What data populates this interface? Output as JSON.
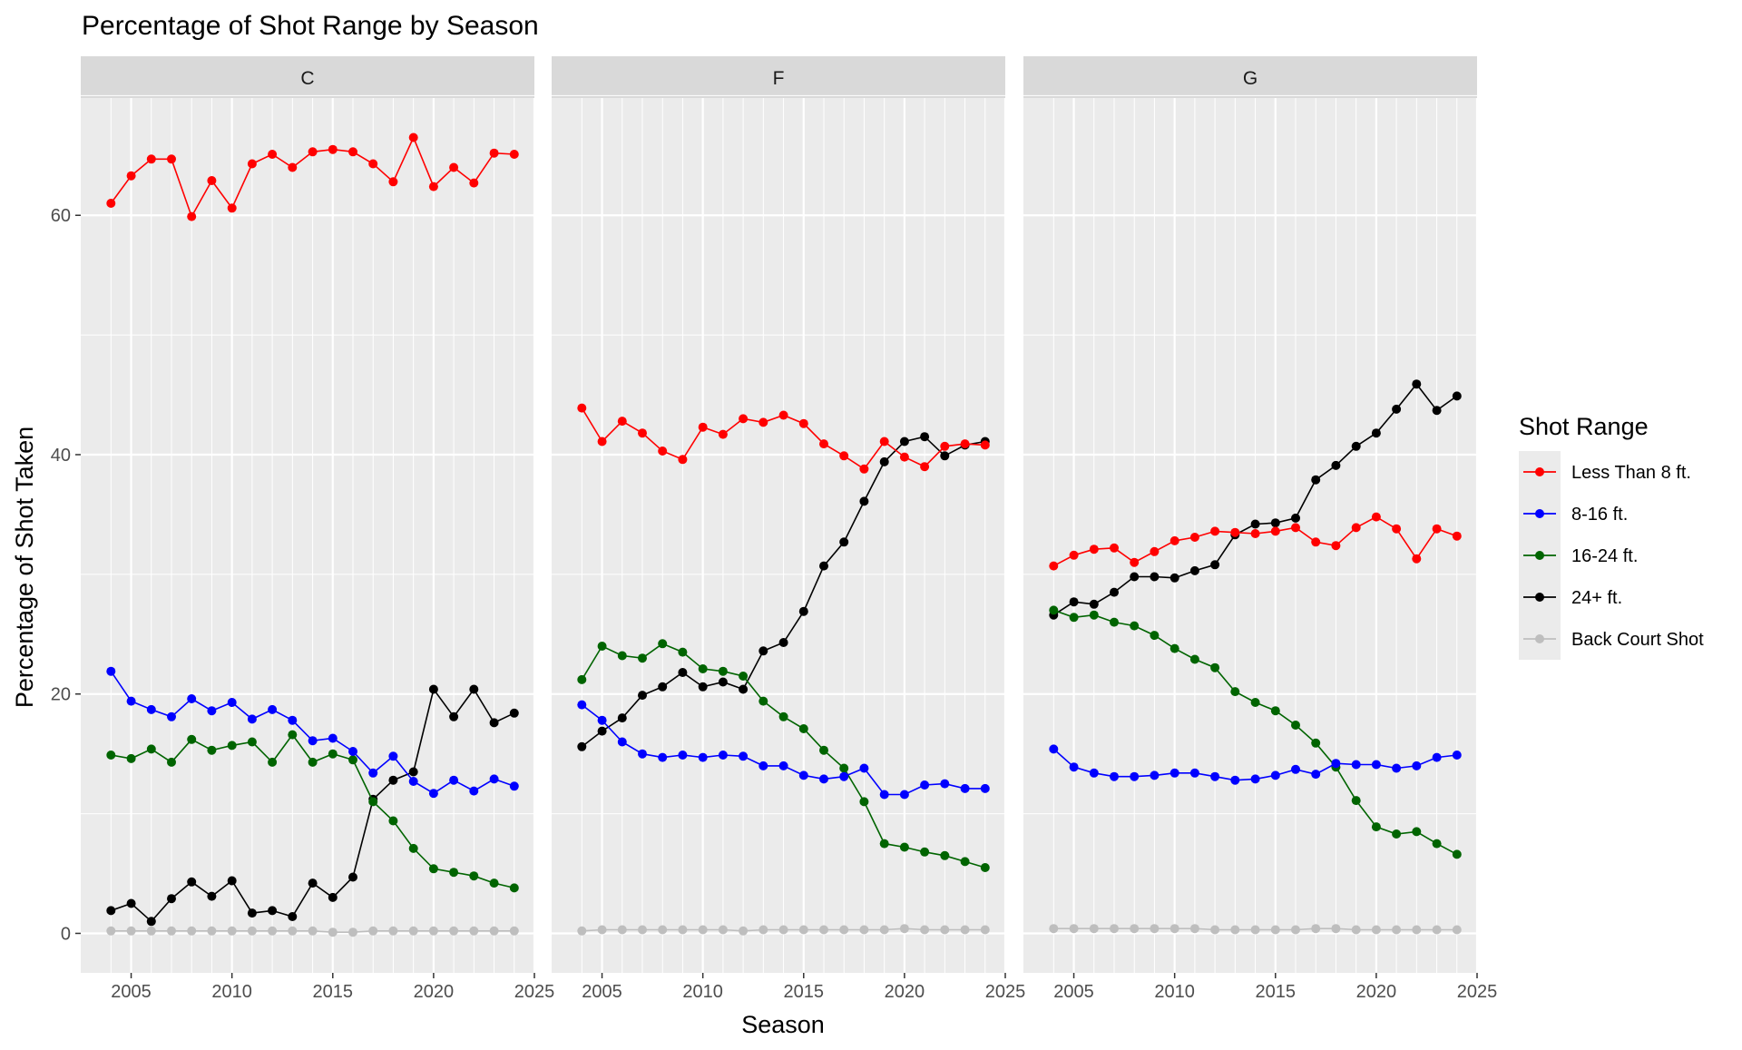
{
  "chart_data": {
    "type": "line",
    "title": "Percentage of Shot Range by Season",
    "xlabel": "Season",
    "ylabel": "Percentage of Shot Taken",
    "xlim": [
      2002.5,
      2025
    ],
    "ylim": [
      -3.3,
      69.8
    ],
    "x_ticks": [
      2005,
      2010,
      2015,
      2020,
      2025
    ],
    "y_ticks": [
      0,
      20,
      40,
      60
    ],
    "grid": true,
    "legend": {
      "title": "Shot Range",
      "position": "right",
      "entries": [
        {
          "name": "Less Than 8 ft.",
          "color": "#ff0000"
        },
        {
          "name": "8-16 ft.",
          "color": "#0000ff"
        },
        {
          "name": "16-24 ft.",
          "color": "#006400"
        },
        {
          "name": "24+ ft.",
          "color": "#000000"
        },
        {
          "name": "Back Court Shot",
          "color": "#bebebe"
        }
      ]
    },
    "x": [
      2004,
      2005,
      2006,
      2007,
      2008,
      2009,
      2010,
      2011,
      2012,
      2013,
      2014,
      2015,
      2016,
      2017,
      2018,
      2019,
      2020,
      2021,
      2022,
      2023,
      2024
    ],
    "panels": [
      {
        "label": "C",
        "series": [
          {
            "name": "Less Than 8 ft.",
            "values": [
              61.0,
              63.3,
              64.7,
              64.7,
              59.9,
              62.9,
              60.6,
              64.3,
              65.1,
              64.0,
              65.3,
              65.5,
              65.3,
              64.3,
              62.8,
              66.5,
              62.4,
              64.0,
              62.7,
              65.2,
              65.1
            ]
          },
          {
            "name": "8-16 ft.",
            "values": [
              21.9,
              19.4,
              18.7,
              18.1,
              19.6,
              18.6,
              19.3,
              17.9,
              18.7,
              17.8,
              16.1,
              16.3,
              15.2,
              13.4,
              14.8,
              12.7,
              11.7,
              12.8,
              11.9,
              12.9,
              12.3
            ]
          },
          {
            "name": "16-24 ft.",
            "values": [
              14.9,
              14.6,
              15.4,
              14.3,
              16.2,
              15.3,
              15.7,
              16.0,
              14.3,
              16.6,
              14.3,
              15.0,
              14.5,
              11.0,
              9.4,
              7.1,
              5.4,
              5.1,
              4.8,
              4.2,
              3.8
            ]
          },
          {
            "name": "24+ ft.",
            "values": [
              1.9,
              2.5,
              1.0,
              2.9,
              4.3,
              3.1,
              4.4,
              1.7,
              1.9,
              1.4,
              4.2,
              3.0,
              4.7,
              11.2,
              12.8,
              13.5,
              20.4,
              18.1,
              20.4,
              17.6,
              18.4
            ]
          },
          {
            "name": "Back Court Shot",
            "values": [
              0.2,
              0.2,
              0.2,
              0.2,
              0.2,
              0.2,
              0.2,
              0.2,
              0.2,
              0.2,
              0.2,
              0.1,
              0.1,
              0.2,
              0.2,
              0.2,
              0.2,
              0.2,
              0.2,
              0.2,
              0.2
            ]
          }
        ]
      },
      {
        "label": "F",
        "series": [
          {
            "name": "Less Than 8 ft.",
            "values": [
              43.9,
              41.1,
              42.8,
              41.8,
              40.3,
              39.6,
              42.3,
              41.7,
              43.0,
              42.7,
              43.3,
              42.6,
              40.9,
              39.9,
              38.8,
              41.1,
              39.8,
              39.0,
              40.7,
              40.9,
              40.8
            ]
          },
          {
            "name": "8-16 ft.",
            "values": [
              19.1,
              17.8,
              16.0,
              15.0,
              14.7,
              14.9,
              14.7,
              14.9,
              14.8,
              14.0,
              14.0,
              13.2,
              12.9,
              13.1,
              13.8,
              11.6,
              11.6,
              12.4,
              12.5,
              12.1,
              12.1
            ]
          },
          {
            "name": "16-24 ft.",
            "values": [
              21.2,
              24.0,
              23.2,
              23.0,
              24.2,
              23.5,
              22.1,
              21.9,
              21.5,
              19.4,
              18.1,
              17.1,
              15.3,
              13.8,
              11.0,
              7.5,
              7.2,
              6.8,
              6.5,
              6.0,
              5.5
            ]
          },
          {
            "name": "24+ ft.",
            "values": [
              15.6,
              16.9,
              18.0,
              19.9,
              20.6,
              21.8,
              20.6,
              21.0,
              20.4,
              23.6,
              24.3,
              26.9,
              30.7,
              32.7,
              36.1,
              39.4,
              41.1,
              41.5,
              39.9,
              40.8,
              41.1
            ]
          },
          {
            "name": "Back Court Shot",
            "values": [
              0.2,
              0.3,
              0.3,
              0.3,
              0.3,
              0.3,
              0.3,
              0.3,
              0.2,
              0.3,
              0.3,
              0.3,
              0.3,
              0.3,
              0.3,
              0.3,
              0.4,
              0.3,
              0.3,
              0.3,
              0.3
            ]
          }
        ]
      },
      {
        "label": "G",
        "series": [
          {
            "name": "Less Than 8 ft.",
            "values": [
              30.7,
              31.6,
              32.1,
              32.2,
              31.0,
              31.9,
              32.8,
              33.1,
              33.6,
              33.5,
              33.4,
              33.6,
              33.9,
              32.7,
              32.4,
              33.9,
              34.8,
              33.8,
              31.3,
              33.8,
              33.2
            ]
          },
          {
            "name": "8-16 ft.",
            "values": [
              15.4,
              13.9,
              13.4,
              13.1,
              13.1,
              13.2,
              13.4,
              13.4,
              13.1,
              12.8,
              12.9,
              13.2,
              13.7,
              13.3,
              14.2,
              14.1,
              14.1,
              13.8,
              14.0,
              14.7,
              14.9
            ]
          },
          {
            "name": "16-24 ft.",
            "values": [
              27.0,
              26.4,
              26.6,
              26.0,
              25.7,
              24.9,
              23.8,
              22.9,
              22.2,
              20.2,
              19.3,
              18.6,
              17.4,
              15.9,
              13.9,
              11.1,
              8.9,
              8.3,
              8.5,
              7.5,
              6.6
            ]
          },
          {
            "name": "24+ ft.",
            "values": [
              26.6,
              27.7,
              27.5,
              28.5,
              29.8,
              29.8,
              29.7,
              30.3,
              30.8,
              33.3,
              34.2,
              34.3,
              34.7,
              37.9,
              39.1,
              40.7,
              41.8,
              43.8,
              45.9,
              43.7,
              44.9
            ]
          },
          {
            "name": "Back Court Shot",
            "values": [
              0.4,
              0.4,
              0.4,
              0.4,
              0.4,
              0.4,
              0.4,
              0.4,
              0.3,
              0.3,
              0.3,
              0.3,
              0.3,
              0.4,
              0.4,
              0.3,
              0.3,
              0.3,
              0.3,
              0.3,
              0.3
            ]
          }
        ]
      }
    ]
  }
}
